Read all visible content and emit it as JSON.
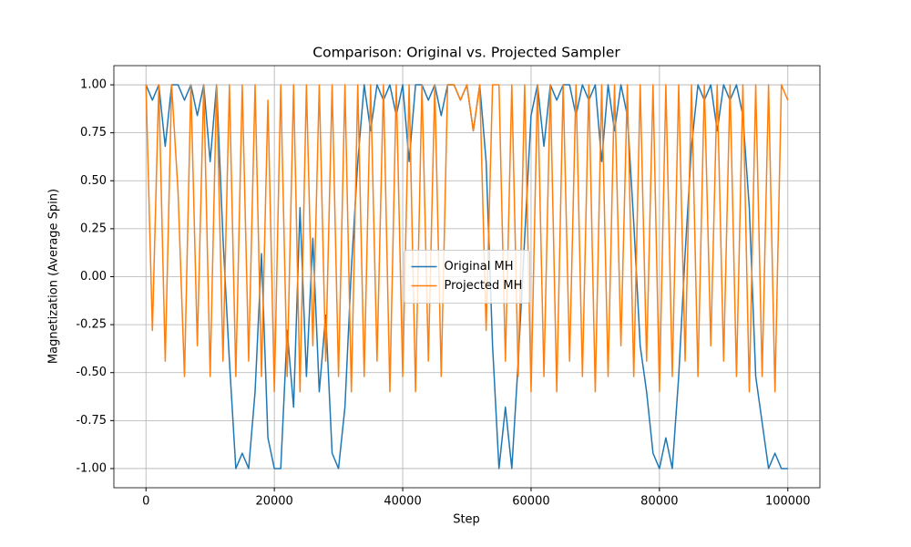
{
  "chart_data": {
    "type": "line",
    "title": "Comparison: Original vs. Projected Sampler",
    "xlabel": "Step",
    "ylabel": "Magnetization (Average Spin)",
    "x": [
      0,
      1000,
      2000,
      3000,
      4000,
      5000,
      6000,
      7000,
      8000,
      9000,
      10000,
      11000,
      12000,
      13000,
      14000,
      15000,
      16000,
      17000,
      18000,
      19000,
      20000,
      21000,
      22000,
      23000,
      24000,
      25000,
      26000,
      27000,
      28000,
      29000,
      30000,
      31000,
      32000,
      33000,
      34000,
      35000,
      36000,
      37000,
      38000,
      39000,
      40000,
      41000,
      42000,
      43000,
      44000,
      45000,
      46000,
      47000,
      48000,
      49000,
      50000,
      51000,
      52000,
      53000,
      54000,
      55000,
      56000,
      57000,
      58000,
      59000,
      60000,
      61000,
      62000,
      63000,
      64000,
      65000,
      66000,
      67000,
      68000,
      69000,
      70000,
      71000,
      72000,
      73000,
      74000,
      75000,
      76000,
      77000,
      78000,
      79000,
      80000,
      81000,
      82000,
      83000,
      84000,
      85000,
      86000,
      87000,
      88000,
      89000,
      90000,
      91000,
      92000,
      93000,
      94000,
      95000,
      96000,
      97000,
      98000,
      99000,
      100000
    ],
    "series": [
      {
        "name": "Original MH",
        "color": "#1f77b4",
        "values": [
          1,
          0.92,
          1,
          0.68,
          1,
          1,
          0.92,
          1,
          0.84,
          1,
          0.6,
          1,
          0.2,
          -0.44,
          -1,
          -0.92,
          -1,
          -0.6,
          0.12,
          -0.84,
          -1,
          -1,
          -0.28,
          -0.68,
          0.36,
          -0.52,
          0.2,
          -0.6,
          -0.2,
          -0.92,
          -1,
          -0.68,
          0.04,
          0.6,
          1,
          0.76,
          1,
          0.92,
          1,
          0.84,
          1,
          0.6,
          1,
          1,
          0.92,
          1,
          0.84,
          1,
          1,
          0.92,
          1,
          0.76,
          1,
          0.6,
          -0.36,
          -1,
          -0.68,
          -1,
          -0.44,
          0.2,
          0.84,
          1,
          0.68,
          1,
          0.92,
          1,
          1,
          0.84,
          1,
          0.92,
          1,
          0.6,
          1,
          0.76,
          1,
          0.84,
          0.28,
          -0.36,
          -0.6,
          -0.92,
          -1,
          -0.84,
          -1,
          -0.52,
          0.12,
          0.68,
          1,
          0.92,
          1,
          0.76,
          1,
          0.92,
          1,
          0.84,
          0.36,
          -0.52,
          -0.76,
          -1,
          -0.92,
          -1,
          -1
        ]
      },
      {
        "name": "Projected MH",
        "color": "#ff7f0e",
        "values": [
          1,
          -0.28,
          1,
          -0.44,
          1,
          0.44,
          -0.52,
          1,
          -0.36,
          1,
          -0.52,
          1,
          -0.44,
          1,
          -0.52,
          1,
          -0.44,
          1,
          -0.52,
          0.92,
          -0.6,
          1,
          -0.52,
          1,
          -0.6,
          1,
          -0.36,
          1,
          -0.44,
          1,
          -0.52,
          1,
          -0.6,
          1,
          -0.52,
          1,
          -0.44,
          1,
          -0.6,
          1,
          -0.52,
          1,
          -0.6,
          1,
          -0.44,
          1,
          -0.52,
          1,
          1,
          0.92,
          1,
          0.76,
          1,
          -0.28,
          1,
          1,
          -0.44,
          1,
          -0.52,
          1,
          -0.6,
          1,
          -0.52,
          1,
          -0.6,
          1,
          -0.44,
          1,
          -0.52,
          1,
          -0.6,
          1,
          -0.52,
          1,
          -0.36,
          1,
          -0.52,
          1,
          -0.44,
          1,
          -0.6,
          1,
          -0.52,
          1,
          -0.44,
          1,
          -0.52,
          1,
          -0.36,
          1,
          -0.44,
          1,
          -0.52,
          1,
          -0.6,
          1,
          -0.52,
          1,
          -0.6,
          1,
          0.92
        ]
      }
    ],
    "xlim": [
      -5000,
      105000
    ],
    "xticks": [
      0,
      20000,
      40000,
      60000,
      80000,
      100000
    ],
    "ylim": [
      -1.1,
      1.1
    ],
    "yticks": [
      {
        "value": -1,
        "label": "-1.00"
      },
      {
        "value": -0.75,
        "label": "-0.75"
      },
      {
        "value": -0.5,
        "label": "-0.50"
      },
      {
        "value": -0.25,
        "label": "-0.25"
      },
      {
        "value": 0,
        "label": "0.00"
      },
      {
        "value": 0.25,
        "label": "0.25"
      },
      {
        "value": 0.5,
        "label": "0.50"
      },
      {
        "value": 0.75,
        "label": "0.75"
      },
      {
        "value": 1,
        "label": "1.00"
      }
    ],
    "grid": true,
    "legend": "center"
  }
}
